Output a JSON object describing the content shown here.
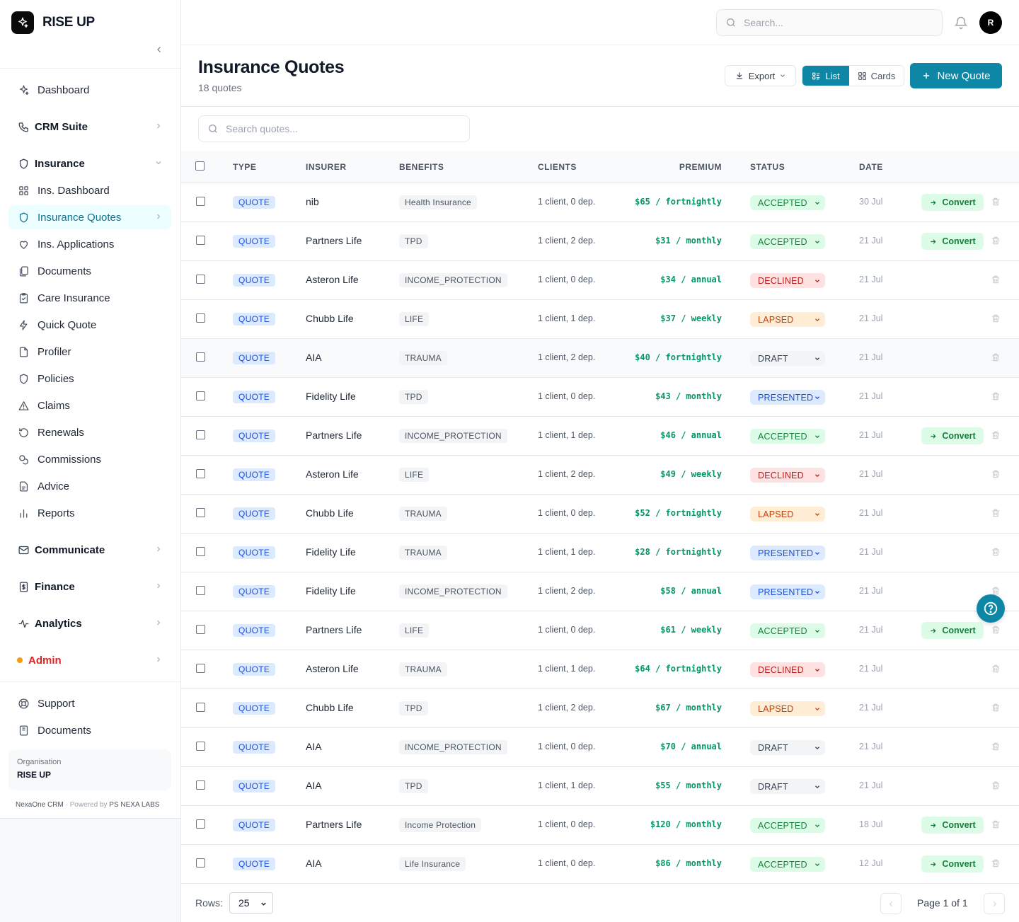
{
  "brand": {
    "name": "RISE UP"
  },
  "colors": {
    "accent": "#0e87a7",
    "active_nav_bg": "#ecfeff",
    "premium_green": "#059669"
  },
  "sidebar": {
    "items": [
      {
        "label": "Dashboard",
        "icon": "sparkle-icon"
      },
      {
        "label": "CRM Suite",
        "icon": "phone-icon",
        "group": true
      },
      {
        "label": "Insurance",
        "icon": "shield-icon",
        "group": true,
        "expanded": true
      },
      {
        "label": "Ins. Dashboard",
        "icon": "grid-icon"
      },
      {
        "label": "Insurance Quotes",
        "icon": "shield-icon",
        "active": true
      },
      {
        "label": "Ins. Applications",
        "icon": "heart-icon"
      },
      {
        "label": "Documents",
        "icon": "files-icon"
      },
      {
        "label": "Care Insurance",
        "icon": "clipboard-icon"
      },
      {
        "label": "Quick Quote",
        "icon": "bolt-icon"
      },
      {
        "label": "Profiler",
        "icon": "file-icon"
      },
      {
        "label": "Policies",
        "icon": "shield-icon"
      },
      {
        "label": "Claims",
        "icon": "warning-icon"
      },
      {
        "label": "Renewals",
        "icon": "refresh-icon"
      },
      {
        "label": "Commissions",
        "icon": "coins-icon"
      },
      {
        "label": "Advice",
        "icon": "document-icon"
      },
      {
        "label": "Reports",
        "icon": "bar-chart-icon"
      },
      {
        "label": "Communicate",
        "icon": "mail-icon",
        "group": true
      },
      {
        "label": "Finance",
        "icon": "dollar-icon",
        "group": true
      },
      {
        "label": "Analytics",
        "icon": "pulse-icon",
        "group": true
      },
      {
        "label": "Admin",
        "icon": "dot-icon",
        "group": true
      }
    ],
    "support": {
      "label": "Support",
      "icon": "lifebuoy-icon"
    },
    "documents": {
      "label": "Documents",
      "icon": "book-icon"
    },
    "org_label": "Organisation",
    "org_name": "RISE UP",
    "powered_app": "NexaOne CRM",
    "powered_sep": " · Powered by ",
    "powered_company": "PS NEXA LABS"
  },
  "topbar": {
    "search_placeholder": "Search...",
    "avatar_initial": "R"
  },
  "page": {
    "title": "Insurance Quotes",
    "subtitle": "18 quotes",
    "export_label": "Export",
    "view_list": "List",
    "view_cards": "Cards",
    "new_label": "New Quote",
    "search_placeholder": "Search quotes..."
  },
  "table": {
    "columns": [
      "TYPE",
      "INSURER",
      "BENEFITS",
      "CLIENTS",
      "PREMIUM",
      "STATUS",
      "DATE"
    ],
    "convert_label": "Convert",
    "rows": [
      {
        "type": "QUOTE",
        "insurer": "nib",
        "benefit": "Health Insurance",
        "clients": "1 client, 0 dep.",
        "premium": "$65 / fortnightly",
        "status": "ACCEPTED",
        "date": "30 Jul",
        "convert": true
      },
      {
        "type": "QUOTE",
        "insurer": "Partners Life",
        "benefit": "TPD",
        "clients": "1 client, 2 dep.",
        "premium": "$31 / monthly",
        "status": "ACCEPTED",
        "date": "21 Jul",
        "convert": true
      },
      {
        "type": "QUOTE",
        "insurer": "Asteron Life",
        "benefit": "INCOME_PROTECTION",
        "clients": "1 client, 0 dep.",
        "premium": "$34 / annual",
        "status": "DECLINED",
        "date": "21 Jul",
        "convert": false
      },
      {
        "type": "QUOTE",
        "insurer": "Chubb Life",
        "benefit": "LIFE",
        "clients": "1 client, 1 dep.",
        "premium": "$37 / weekly",
        "status": "LAPSED",
        "date": "21 Jul",
        "convert": false
      },
      {
        "type": "QUOTE",
        "insurer": "AIA",
        "benefit": "TRAUMA",
        "clients": "1 client, 2 dep.",
        "premium": "$40 / fortnightly",
        "status": "DRAFT",
        "date": "21 Jul",
        "convert": false,
        "hover": true
      },
      {
        "type": "QUOTE",
        "insurer": "Fidelity Life",
        "benefit": "TPD",
        "clients": "1 client, 0 dep.",
        "premium": "$43 / monthly",
        "status": "PRESENTED",
        "date": "21 Jul",
        "convert": false
      },
      {
        "type": "QUOTE",
        "insurer": "Partners Life",
        "benefit": "INCOME_PROTECTION",
        "clients": "1 client, 1 dep.",
        "premium": "$46 / annual",
        "status": "ACCEPTED",
        "date": "21 Jul",
        "convert": true
      },
      {
        "type": "QUOTE",
        "insurer": "Asteron Life",
        "benefit": "LIFE",
        "clients": "1 client, 2 dep.",
        "premium": "$49 / weekly",
        "status": "DECLINED",
        "date": "21 Jul",
        "convert": false
      },
      {
        "type": "QUOTE",
        "insurer": "Chubb Life",
        "benefit": "TRAUMA",
        "clients": "1 client, 0 dep.",
        "premium": "$52 / fortnightly",
        "status": "LAPSED",
        "date": "21 Jul",
        "convert": false
      },
      {
        "type": "QUOTE",
        "insurer": "Fidelity Life",
        "benefit": "TRAUMA",
        "clients": "1 client, 1 dep.",
        "premium": "$28 / fortnightly",
        "status": "PRESENTED",
        "date": "21 Jul",
        "convert": false
      },
      {
        "type": "QUOTE",
        "insurer": "Fidelity Life",
        "benefit": "INCOME_PROTECTION",
        "clients": "1 client, 2 dep.",
        "premium": "$58 / annual",
        "status": "PRESENTED",
        "date": "21 Jul",
        "convert": false
      },
      {
        "type": "QUOTE",
        "insurer": "Partners Life",
        "benefit": "LIFE",
        "clients": "1 client, 0 dep.",
        "premium": "$61 / weekly",
        "status": "ACCEPTED",
        "date": "21 Jul",
        "convert": true
      },
      {
        "type": "QUOTE",
        "insurer": "Asteron Life",
        "benefit": "TRAUMA",
        "clients": "1 client, 1 dep.",
        "premium": "$64 / fortnightly",
        "status": "DECLINED",
        "date": "21 Jul",
        "convert": false
      },
      {
        "type": "QUOTE",
        "insurer": "Chubb Life",
        "benefit": "TPD",
        "clients": "1 client, 2 dep.",
        "premium": "$67 / monthly",
        "status": "LAPSED",
        "date": "21 Jul",
        "convert": false
      },
      {
        "type": "QUOTE",
        "insurer": "AIA",
        "benefit": "INCOME_PROTECTION",
        "clients": "1 client, 0 dep.",
        "premium": "$70 / annual",
        "status": "DRAFT",
        "date": "21 Jul",
        "convert": false
      },
      {
        "type": "QUOTE",
        "insurer": "AIA",
        "benefit": "TPD",
        "clients": "1 client, 1 dep.",
        "premium": "$55 / monthly",
        "status": "DRAFT",
        "date": "21 Jul",
        "convert": false
      },
      {
        "type": "QUOTE",
        "insurer": "Partners Life",
        "benefit": "Income Protection",
        "clients": "1 client, 0 dep.",
        "premium": "$120 / monthly",
        "status": "ACCEPTED",
        "date": "18 Jul",
        "convert": true
      },
      {
        "type": "QUOTE",
        "insurer": "AIA",
        "benefit": "Life Insurance",
        "clients": "1 client, 0 dep.",
        "premium": "$86 / monthly",
        "status": "ACCEPTED",
        "date": "12 Jul",
        "convert": true
      }
    ]
  },
  "footer": {
    "rows_label": "Rows:",
    "rows_value": "25",
    "page_text": "Page 1 of 1"
  }
}
